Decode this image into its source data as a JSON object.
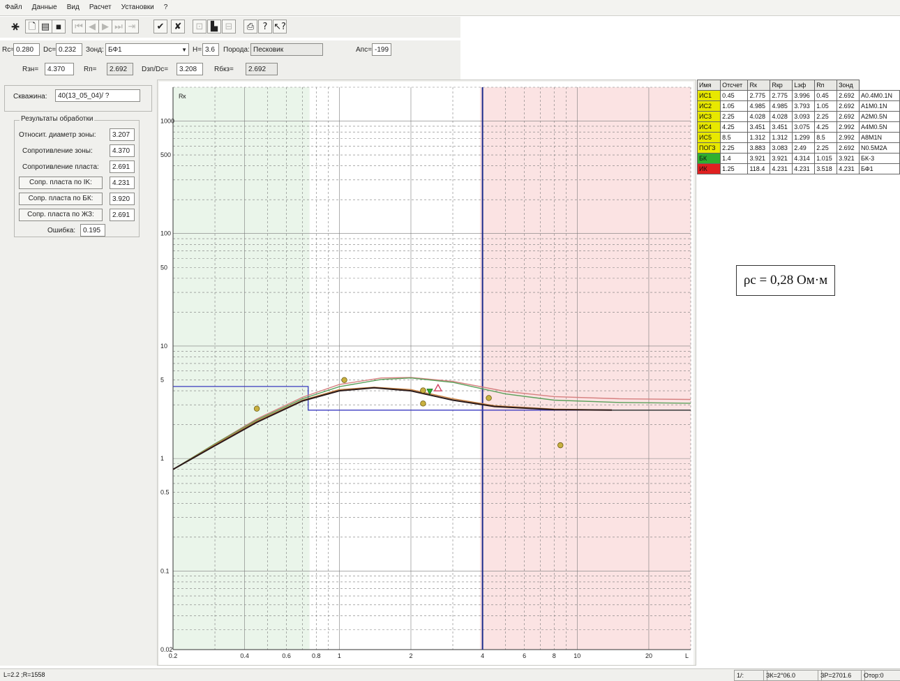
{
  "menu": [
    "Файл",
    "Данные",
    "Вид",
    "Расчет",
    "Установки",
    "?"
  ],
  "toolbar": {
    "buttons": [
      {
        "name": "app-logo-icon",
        "glyph": "⚹"
      },
      {
        "name": "new-file-icon",
        "glyph": "🗋"
      },
      {
        "name": "open-folder-icon",
        "glyph": "▤"
      },
      {
        "name": "save-icon",
        "glyph": "▪"
      },
      {
        "name": "first-record-icon",
        "glyph": "⏮"
      },
      {
        "name": "prev-record-icon",
        "glyph": "◀"
      },
      {
        "name": "next-record-icon",
        "glyph": "▶"
      },
      {
        "name": "last-record-icon",
        "glyph": "⏭"
      },
      {
        "name": "end-record-icon",
        "glyph": "⇥"
      },
      {
        "name": "accept-check-icon",
        "glyph": "✔"
      },
      {
        "name": "cancel-x-icon",
        "glyph": "✘"
      },
      {
        "name": "disabled-tool-1-icon",
        "glyph": "⊡"
      },
      {
        "name": "stamp-icon",
        "glyph": "▙"
      },
      {
        "name": "disabled-tool-2-icon",
        "glyph": "⊟"
      },
      {
        "name": "printer-icon",
        "glyph": "⎙"
      },
      {
        "name": "help-icon",
        "glyph": "?"
      },
      {
        "name": "context-help-icon",
        "glyph": "↖?"
      }
    ]
  },
  "params_row1": {
    "rc_label": "Rc=",
    "rc_value": "0.280",
    "dc_label": "Dc=",
    "dc_value": "0.232",
    "probe_label": "Зонд:",
    "probe_value": "БФ1",
    "h_label": "H=",
    "h_value": "3.6",
    "rock_label": "Порода:",
    "rock_value": "Песковик",
    "alpha_label": "Апс=",
    "alpha_value": "-199"
  },
  "params_row2": {
    "rzn_label": "Rзн=",
    "rzn_value": "4.370",
    "rp_label": "Rп=",
    "rp_value": "2.692",
    "d_label": "Dзп/Dc=",
    "d_value": "3.208",
    "rbk_label": "Rбкз=",
    "rbk_value": "2.692"
  },
  "left_panel": {
    "well_label": "Скважина:",
    "well_value": "40(13_05_04)/ ?",
    "group_title": "Результаты обработки",
    "rows": [
      {
        "label": "Относит. диаметр зоны:",
        "value": "3.207"
      },
      {
        "label": "Сопротивление зоны:",
        "value": "4.370"
      },
      {
        "label": "Сопротивление пласта:",
        "value": "2.691"
      }
    ],
    "buttons": [
      {
        "label": "Сопр. пласта по IK:",
        "value": "4.231"
      },
      {
        "label": "Сопр. пласта по БК:",
        "value": "3.920"
      },
      {
        "label": "Сопр. пласта по ЖЗ:",
        "value": "2.691"
      }
    ],
    "error_label": "Ошибка:",
    "error_value": "0.195"
  },
  "table": {
    "headers": [
      "Имя",
      "Отсчет",
      "Rк",
      "Rкр",
      "Lэф",
      "Rп",
      "Зонд"
    ],
    "rows": [
      {
        "name": "ИС1",
        "color": "#e8e800",
        "cells": [
          "0.45",
          "2.775",
          "2.775",
          "3.996",
          "0.45",
          "2.692",
          "A0.4M0.1N"
        ]
      },
      {
        "name": "ИС2",
        "color": "#e8e800",
        "cells": [
          "1.05",
          "4.985",
          "4.985",
          "3.793",
          "1.05",
          "2.692",
          "A1M0.1N"
        ]
      },
      {
        "name": "ИС3",
        "color": "#e8e800",
        "cells": [
          "2.25",
          "4.028",
          "4.028",
          "3.093",
          "2.25",
          "2.692",
          "A2M0.5N"
        ]
      },
      {
        "name": "ИС4",
        "color": "#e8e800",
        "cells": [
          "4.25",
          "3.451",
          "3.451",
          "3.075",
          "4.25",
          "2.992",
          "A4M0.5N"
        ]
      },
      {
        "name": "ИС5",
        "color": "#e8e800",
        "cells": [
          "8.5",
          "1.312",
          "1.312",
          "1.299",
          "8.5",
          "2.992",
          "A8M1N"
        ]
      },
      {
        "name": "ПОГЗ",
        "color": "#e8e800",
        "cells": [
          "2.25",
          "3.883",
          "3.083",
          "2.49",
          "2.25",
          "2.692",
          "N0.5M2A"
        ]
      },
      {
        "name": "БК",
        "color": "#2fb02f",
        "cells": [
          "1.4",
          "3.921",
          "3.921",
          "4.314",
          "1.015",
          "3.921",
          "БК-3"
        ]
      },
      {
        "name": "ИК",
        "color": "#e02020",
        "cells": [
          "1.25",
          "118.4",
          "4.231",
          "4.231",
          "3.518",
          "4.231",
          "БФ1"
        ]
      }
    ]
  },
  "rho_annotation": "ρc = 0,28 Ом·м",
  "status_bar": [
    "L=2.2 ;R=1558",
    "1/:",
    "ЗК=2°06.0",
    "ЗР=2701.6",
    "Отор:0"
  ],
  "chart_data": {
    "type": "line",
    "x_scale": "log",
    "y_scale": "log",
    "xlim": [
      0.2,
      30
    ],
    "ylim": [
      0.02,
      2000
    ],
    "xlabel": "L",
    "ylabel": "Rк",
    "x_ticks": [
      {
        "v": 0.2,
        "t": "0.2"
      },
      {
        "v": 0.4,
        "t": "0.4"
      },
      {
        "v": 0.6,
        "t": "0.6"
      },
      {
        "v": 0.8,
        "t": "0.8"
      },
      {
        "v": 1,
        "t": "1"
      },
      {
        "v": 2,
        "t": "2"
      },
      {
        "v": 4,
        "t": "4"
      },
      {
        "v": 6,
        "t": "6"
      },
      {
        "v": 8,
        "t": "8"
      },
      {
        "v": 10,
        "t": "10"
      },
      {
        "v": 20,
        "t": "20"
      }
    ],
    "y_ticks": [
      {
        "v": 0.02,
        "t": "0.02"
      },
      {
        "v": 0.1,
        "t": "0.1"
      },
      {
        "v": 0.5,
        "t": "0.5"
      },
      {
        "v": 1,
        "t": "1"
      },
      {
        "v": 5,
        "t": "5"
      },
      {
        "v": 10,
        "t": "10"
      },
      {
        "v": 50,
        "t": "50"
      },
      {
        "v": 100,
        "t": "100"
      },
      {
        "v": 500,
        "t": "500"
      },
      {
        "v": 1000,
        "t": "1000"
      }
    ],
    "regions": [
      {
        "x0": 0.2,
        "x1": 0.75,
        "color": "#eaf5ea"
      },
      {
        "x0": 3.9,
        "x1": 30,
        "color": "#fbe3e3"
      }
    ],
    "vline": {
      "x": 4,
      "color": "#1a2a8a"
    },
    "step_model": {
      "color": "#3a3ac0",
      "points": [
        [
          0.2,
          4.37
        ],
        [
          0.74,
          4.37
        ],
        [
          0.74,
          2.692
        ],
        [
          30,
          2.692
        ]
      ]
    },
    "series": [
      {
        "color": "#d68080",
        "points": [
          [
            0.2,
            0.8
          ],
          [
            0.3,
            1.35
          ],
          [
            0.45,
            2.25
          ],
          [
            0.7,
            3.5
          ],
          [
            1,
            4.55
          ],
          [
            1.5,
            5.2
          ],
          [
            2,
            5.25
          ],
          [
            3,
            4.85
          ],
          [
            5,
            3.95
          ],
          [
            8,
            3.55
          ],
          [
            15,
            3.4
          ],
          [
            30,
            3.35
          ]
        ]
      },
      {
        "color": "#5aa05a",
        "points": [
          [
            0.2,
            0.8
          ],
          [
            0.3,
            1.35
          ],
          [
            0.45,
            2.2
          ],
          [
            0.7,
            3.4
          ],
          [
            1,
            4.35
          ],
          [
            1.5,
            5.05
          ],
          [
            2,
            5.2
          ],
          [
            3,
            4.75
          ],
          [
            5,
            3.75
          ],
          [
            8,
            3.3
          ],
          [
            15,
            3.15
          ],
          [
            30,
            3.1
          ]
        ]
      },
      {
        "color": "#c88040",
        "points": [
          [
            0.2,
            0.8
          ],
          [
            0.3,
            1.33
          ],
          [
            0.45,
            2.15
          ],
          [
            0.7,
            3.3
          ],
          [
            1,
            4.1
          ],
          [
            1.4,
            4.3
          ],
          [
            2,
            4.1
          ],
          [
            3,
            3.4
          ],
          [
            4.5,
            2.95
          ],
          [
            8,
            2.75
          ],
          [
            14,
            2.7
          ]
        ]
      },
      {
        "color": "#2a1a1a",
        "points": [
          [
            0.2,
            0.8
          ],
          [
            0.3,
            1.3
          ],
          [
            0.45,
            2.1
          ],
          [
            0.7,
            3.25
          ],
          [
            1,
            4.0
          ],
          [
            1.4,
            4.25
          ],
          [
            2,
            4.0
          ],
          [
            3,
            3.3
          ],
          [
            4.5,
            2.9
          ],
          [
            8,
            2.72
          ],
          [
            14,
            2.69
          ]
        ]
      }
    ],
    "flat_tail": {
      "color": "#444444",
      "points": [
        [
          14,
          2.692
        ],
        [
          30,
          2.692
        ]
      ]
    },
    "markers": [
      {
        "x": 0.45,
        "y": 2.775,
        "shape": "circle",
        "color": "#c8b040"
      },
      {
        "x": 1.05,
        "y": 4.985,
        "shape": "circle",
        "color": "#c8b040"
      },
      {
        "x": 2.25,
        "y": 4.028,
        "shape": "circle",
        "color": "#c8b040"
      },
      {
        "x": 2.25,
        "y": 3.083,
        "shape": "circle",
        "color": "#c8b040"
      },
      {
        "x": 4.25,
        "y": 3.451,
        "shape": "circle",
        "color": "#c8b040"
      },
      {
        "x": 8.5,
        "y": 1.312,
        "shape": "circle",
        "color": "#c8b040"
      },
      {
        "x": 2.4,
        "y": 3.92,
        "shape": "triangle-down",
        "color": "#2fb02f"
      },
      {
        "x": 2.6,
        "y": 4.23,
        "shape": "triangle-up",
        "color": "#d04060"
      }
    ]
  }
}
